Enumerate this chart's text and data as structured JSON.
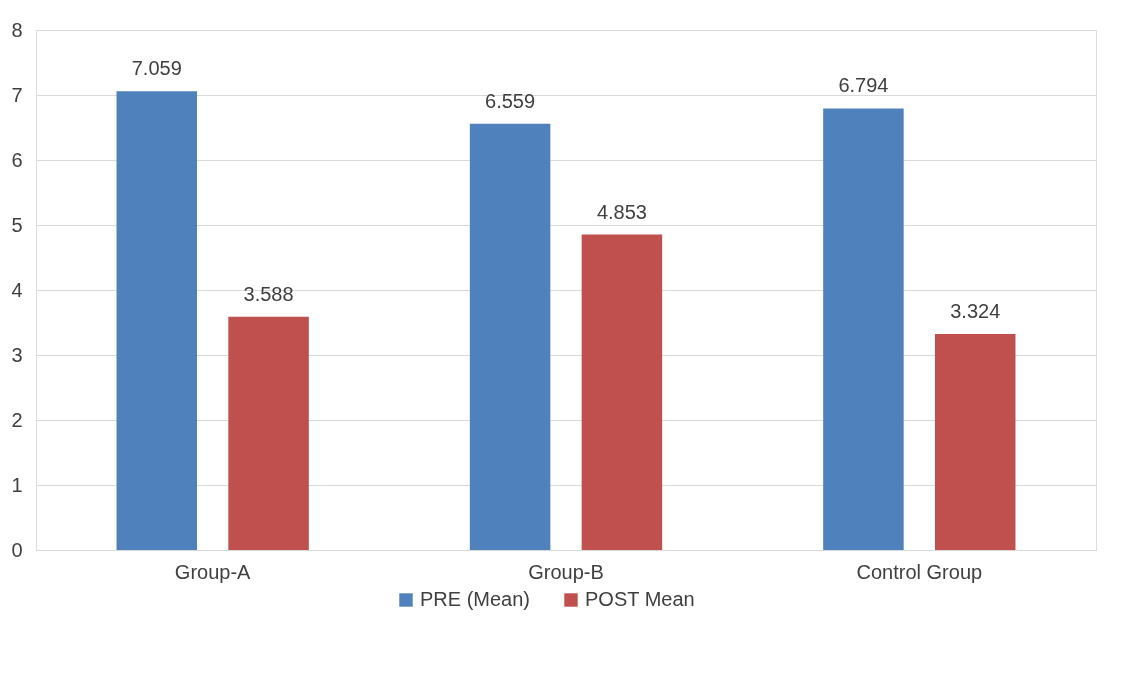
{
  "chart_data": {
    "type": "bar",
    "categories": [
      "Group-A",
      "Group-B",
      "Control Group"
    ],
    "series": [
      {
        "name": "PRE (Mean)",
        "color": "#4f81bd",
        "values": [
          7.059,
          6.559,
          6.794
        ]
      },
      {
        "name": "POST Mean",
        "color": "#c0504d",
        "values": [
          3.588,
          4.853,
          3.324
        ]
      }
    ],
    "ylim": [
      0,
      8
    ],
    "yticks": [
      0,
      1,
      2,
      3,
      4,
      5,
      6,
      7,
      8
    ],
    "grid": "y",
    "legend": "bottom",
    "data_labels": true
  }
}
